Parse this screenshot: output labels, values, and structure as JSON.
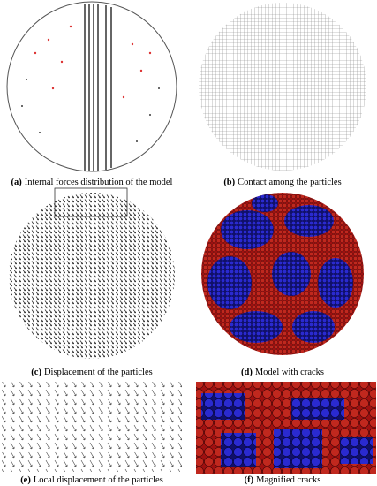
{
  "panels": [
    {
      "label": "(a)",
      "caption": "Internal forces distribution of the model"
    },
    {
      "label": "(b)",
      "caption": "Contact among the particles"
    },
    {
      "label": "(c)",
      "caption": "Displacement of the particles"
    },
    {
      "label": "(d)",
      "caption": "Model with cracks"
    },
    {
      "label": "(e)",
      "caption": "Local displacement of the particles"
    },
    {
      "label": "(f)",
      "caption": "Magnified cracks"
    }
  ]
}
